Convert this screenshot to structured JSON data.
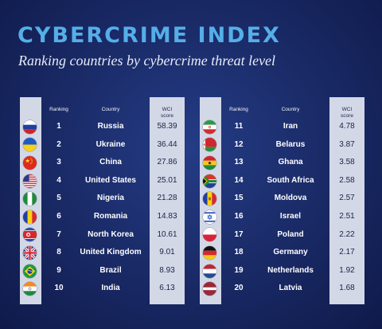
{
  "header": {
    "title": "CYBERCRIME INDEX",
    "subtitle": "Ranking countries by cybercrime threat level"
  },
  "columns": {
    "ranking": "Ranking",
    "country": "Country",
    "score_line1": "WCI",
    "score_line2": "score"
  },
  "chart_data": {
    "type": "table",
    "title": "CYBERCRIME INDEX",
    "subtitle": "Ranking countries by cybercrime threat level",
    "columns": [
      "Ranking",
      "Country",
      "WCI score"
    ],
    "rows": [
      {
        "rank": "1",
        "country": "Russia",
        "score": "58.39",
        "flag": "russia-flag-icon"
      },
      {
        "rank": "2",
        "country": "Ukraine",
        "score": "36.44",
        "flag": "ukraine-flag-icon"
      },
      {
        "rank": "3",
        "country": "China",
        "score": "27.86",
        "flag": "china-flag-icon"
      },
      {
        "rank": "4",
        "country": "United States",
        "score": "25.01",
        "flag": "united-states-flag-icon"
      },
      {
        "rank": "5",
        "country": "Nigeria",
        "score": "21.28",
        "flag": "nigeria-flag-icon"
      },
      {
        "rank": "6",
        "country": "Romania",
        "score": "14.83",
        "flag": "romania-flag-icon"
      },
      {
        "rank": "7",
        "country": "North Korea",
        "score": "10.61",
        "flag": "north-korea-flag-icon"
      },
      {
        "rank": "8",
        "country": "United Kingdom",
        "score": "9.01",
        "flag": "united-kingdom-flag-icon"
      },
      {
        "rank": "9",
        "country": "Brazil",
        "score": "8.93",
        "flag": "brazil-flag-icon"
      },
      {
        "rank": "10",
        "country": "India",
        "score": "6.13",
        "flag": "india-flag-icon"
      },
      {
        "rank": "11",
        "country": "Iran",
        "score": "4.78",
        "flag": "iran-flag-icon"
      },
      {
        "rank": "12",
        "country": "Belarus",
        "score": "3.87",
        "flag": "belarus-flag-icon"
      },
      {
        "rank": "13",
        "country": "Ghana",
        "score": "3.58",
        "flag": "ghana-flag-icon"
      },
      {
        "rank": "14",
        "country": "South Africa",
        "score": "2.58",
        "flag": "south-africa-flag-icon"
      },
      {
        "rank": "15",
        "country": "Moldova",
        "score": "2.57",
        "flag": "moldova-flag-icon"
      },
      {
        "rank": "16",
        "country": "Israel",
        "score": "2.51",
        "flag": "israel-flag-icon"
      },
      {
        "rank": "17",
        "country": "Poland",
        "score": "2.22",
        "flag": "poland-flag-icon"
      },
      {
        "rank": "18",
        "country": "Germany",
        "score": "2.17",
        "flag": "germany-flag-icon"
      },
      {
        "rank": "19",
        "country": "Netherlands",
        "score": "1.92",
        "flag": "netherlands-flag-icon"
      },
      {
        "rank": "20",
        "country": "Latvia",
        "score": "1.68",
        "flag": "latvia-flag-icon"
      }
    ]
  },
  "colors": {
    "background": "#1b2c6a",
    "title": "#55aee8",
    "strip": "#d3d8e7"
  }
}
